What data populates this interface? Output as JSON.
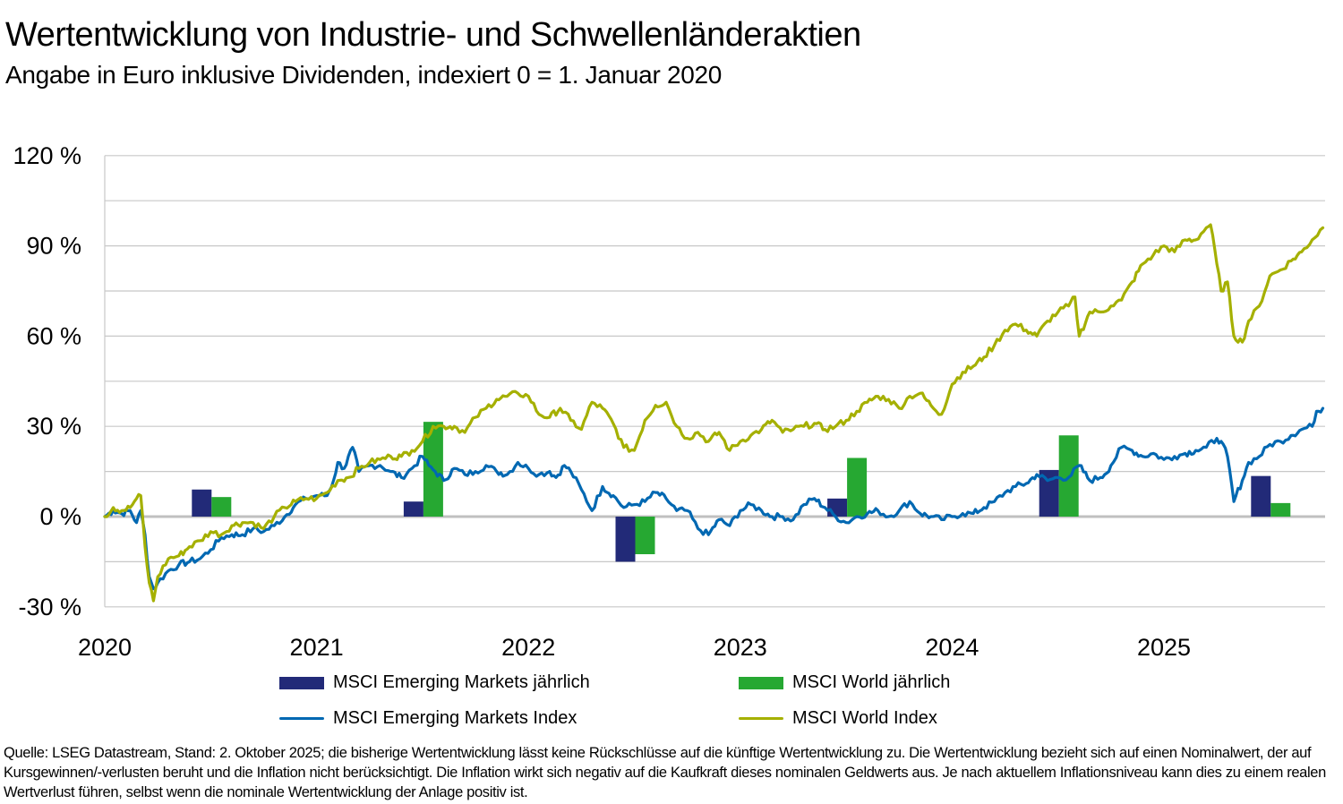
{
  "header": {
    "title": "Wertentwicklung von Industrie- und Schwellenländeraktien",
    "subtitle": "Angabe in Euro inklusive Dividenden, indexiert 0 = 1. Januar 2020"
  },
  "colors": {
    "em_bar": "#222a78",
    "world_bar": "#26a832",
    "em_line": "#0068b2",
    "world_line": "#a5b000",
    "grid": "#c8c8c8",
    "zero_line": "#c0c0c0"
  },
  "chart_data": {
    "type": "line+bar",
    "title": "Wertentwicklung von Industrie- und Schwellenländeraktien",
    "subtitle": "Angabe in Euro inklusive Dividenden, indexiert 0 = 1. Januar 2020",
    "xlabel": "",
    "ylabel": "",
    "ylim": [
      -30,
      120
    ],
    "yticks": [
      -30,
      0,
      30,
      60,
      90,
      120
    ],
    "ytick_labels": [
      "-30 %",
      "0 %",
      "30 %",
      "60 %",
      "90 %",
      "120 %"
    ],
    "xlim": [
      2020.0,
      2025.8
    ],
    "xticks": [
      2020,
      2021,
      2022,
      2023,
      2024,
      2025
    ],
    "xtick_labels": [
      "2020",
      "2021",
      "2022",
      "2023",
      "2024",
      "2025"
    ],
    "grid": true,
    "legend_position": "bottom",
    "bar_series": [
      {
        "name": "MSCI Emerging Markets jährlich",
        "color_key": "em_bar",
        "categories": [
          "2020",
          "2021",
          "2022",
          "2023",
          "2024",
          "2025"
        ],
        "values": [
          9,
          5,
          -15,
          6,
          15.5,
          13.5
        ]
      },
      {
        "name": "MSCI World jährlich",
        "color_key": "world_bar",
        "categories": [
          "2020",
          "2021",
          "2022",
          "2023",
          "2024",
          "2025"
        ],
        "values": [
          6.5,
          31.5,
          -12.5,
          19.5,
          27,
          4.5
        ]
      }
    ],
    "line_series": [
      {
        "name": "MSCI Emerging Markets Index",
        "color_key": "em_line",
        "x": [
          2020.0,
          2020.04,
          2020.08,
          2020.12,
          2020.15,
          2020.17,
          2020.19,
          2020.21,
          2020.23,
          2020.25,
          2020.3,
          2020.35,
          2020.4,
          2020.45,
          2020.5,
          2020.55,
          2020.6,
          2020.65,
          2020.7,
          2020.75,
          2020.8,
          2020.85,
          2020.9,
          2020.95,
          2021.0,
          2021.05,
          2021.08,
          2021.1,
          2021.13,
          2021.17,
          2021.2,
          2021.25,
          2021.3,
          2021.35,
          2021.4,
          2021.45,
          2021.5,
          2021.53,
          2021.56,
          2021.6,
          2021.65,
          2021.7,
          2021.75,
          2021.8,
          2021.85,
          2021.9,
          2021.95,
          2022.0,
          2022.05,
          2022.1,
          2022.13,
          2022.17,
          2022.2,
          2022.25,
          2022.3,
          2022.35,
          2022.4,
          2022.45,
          2022.5,
          2022.55,
          2022.6,
          2022.65,
          2022.7,
          2022.75,
          2022.8,
          2022.85,
          2022.9,
          2022.95,
          2023.0,
          2023.05,
          2023.1,
          2023.15,
          2023.2,
          2023.25,
          2023.3,
          2023.35,
          2023.4,
          2023.45,
          2023.5,
          2023.55,
          2023.6,
          2023.65,
          2023.7,
          2023.75,
          2023.8,
          2023.85,
          2023.9,
          2023.95,
          2024.0,
          2024.05,
          2024.1,
          2024.15,
          2024.2,
          2024.25,
          2024.3,
          2024.35,
          2024.4,
          2024.45,
          2024.5,
          2024.55,
          2024.6,
          2024.65,
          2024.7,
          2024.72,
          2024.75,
          2024.8,
          2024.85,
          2024.9,
          2024.95,
          2025.0,
          2025.05,
          2025.1,
          2025.15,
          2025.2,
          2025.25,
          2025.27,
          2025.3,
          2025.33,
          2025.37,
          2025.4,
          2025.45,
          2025.5,
          2025.55,
          2025.6,
          2025.65,
          2025.7,
          2025.72,
          2025.75
        ],
        "y": [
          0,
          2,
          1,
          2,
          -2,
          2,
          -6,
          -20,
          -24,
          -22,
          -18,
          -16,
          -15,
          -14,
          -11,
          -7,
          -6,
          -6,
          -4,
          -5,
          -3,
          0,
          4,
          6,
          7,
          7,
          12,
          18,
          16,
          23,
          15,
          17,
          17,
          15,
          13,
          16,
          20,
          17,
          15,
          12,
          16,
          14,
          15,
          17,
          15,
          14,
          18,
          16,
          14,
          15,
          13,
          17,
          15,
          9,
          2,
          10,
          7,
          3,
          4,
          5,
          8,
          6,
          2,
          2,
          -4,
          -6,
          -1,
          -3,
          2,
          4,
          2,
          0,
          0,
          -1,
          4,
          6,
          3,
          0,
          -2,
          0,
          1,
          2,
          0,
          2,
          5,
          1,
          0,
          -1,
          0,
          1,
          1,
          3,
          5,
          8,
          10,
          11,
          14,
          12,
          13,
          13,
          17,
          12,
          13,
          14,
          17,
          23,
          22,
          20,
          21,
          19,
          20,
          21,
          22,
          23,
          26,
          25,
          20,
          5,
          12,
          18,
          20,
          24,
          25,
          27,
          29,
          30,
          35,
          36
        ]
      },
      {
        "name": "MSCI World Index",
        "color_key": "world_line",
        "x": [
          2020.0,
          2020.04,
          2020.08,
          2020.12,
          2020.15,
          2020.17,
          2020.19,
          2020.21,
          2020.23,
          2020.25,
          2020.3,
          2020.35,
          2020.4,
          2020.45,
          2020.5,
          2020.55,
          2020.6,
          2020.65,
          2020.7,
          2020.75,
          2020.8,
          2020.85,
          2020.9,
          2020.95,
          2021.0,
          2021.05,
          2021.1,
          2021.15,
          2021.2,
          2021.25,
          2021.3,
          2021.35,
          2021.4,
          2021.45,
          2021.5,
          2021.55,
          2021.6,
          2021.65,
          2021.7,
          2021.75,
          2021.8,
          2021.85,
          2021.9,
          2021.95,
          2022.0,
          2022.05,
          2022.1,
          2022.15,
          2022.2,
          2022.25,
          2022.3,
          2022.35,
          2022.4,
          2022.45,
          2022.5,
          2022.55,
          2022.6,
          2022.65,
          2022.7,
          2022.75,
          2022.8,
          2022.85,
          2022.9,
          2022.95,
          2023.0,
          2023.05,
          2023.1,
          2023.15,
          2023.2,
          2023.25,
          2023.3,
          2023.35,
          2023.4,
          2023.45,
          2023.5,
          2023.55,
          2023.6,
          2023.65,
          2023.7,
          2023.75,
          2023.8,
          2023.85,
          2023.9,
          2023.95,
          2024.0,
          2024.05,
          2024.1,
          2024.15,
          2024.2,
          2024.25,
          2024.3,
          2024.35,
          2024.4,
          2024.45,
          2024.5,
          2024.55,
          2024.58,
          2024.6,
          2024.65,
          2024.7,
          2024.75,
          2024.8,
          2024.85,
          2024.9,
          2024.95,
          2025.0,
          2025.05,
          2025.1,
          2025.15,
          2025.2,
          2025.22,
          2025.25,
          2025.27,
          2025.3,
          2025.33,
          2025.37,
          2025.4,
          2025.45,
          2025.5,
          2025.55,
          2025.6,
          2025.65,
          2025.7,
          2025.75
        ],
        "y": [
          0,
          3,
          2,
          3,
          6,
          7,
          -10,
          -22,
          -28,
          -20,
          -14,
          -13,
          -10,
          -8,
          -5,
          -6,
          -3,
          -2,
          -2,
          -4,
          0,
          3,
          5,
          6,
          6,
          8,
          12,
          13,
          16,
          18,
          19,
          20,
          20,
          22,
          25,
          30,
          30,
          30,
          28,
          33,
          36,
          39,
          40,
          41,
          40,
          34,
          33,
          36,
          32,
          29,
          38,
          36,
          31,
          23,
          22,
          32,
          37,
          38,
          30,
          26,
          28,
          25,
          28,
          22,
          25,
          27,
          29,
          32,
          28,
          29,
          30,
          31,
          29,
          30,
          32,
          35,
          38,
          40,
          39,
          36,
          40,
          41,
          37,
          34,
          44,
          48,
          50,
          53,
          57,
          62,
          64,
          62,
          60,
          65,
          68,
          70,
          73,
          60,
          68,
          68,
          70,
          72,
          78,
          84,
          87,
          90,
          88,
          92,
          92,
          96,
          97,
          84,
          75,
          78,
          60,
          58,
          65,
          70,
          80,
          82,
          85,
          88,
          92,
          96
        ]
      }
    ]
  },
  "legend": {
    "items": [
      {
        "label": "MSCI Emerging Markets jährlich",
        "type": "bar",
        "color_key": "em_bar"
      },
      {
        "label": "MSCI World jährlich",
        "type": "bar",
        "color_key": "world_bar"
      },
      {
        "label": "MSCI Emerging Markets Index",
        "type": "line",
        "color_key": "em_line"
      },
      {
        "label": "MSCI World Index",
        "type": "line",
        "color_key": "world_line"
      }
    ]
  },
  "footnote": "Quelle: LSEG Datastream, Stand: 2. Oktober 2025; die bisherige Wertentwicklung lässt keine Rückschlüsse auf die künftige Wertentwicklung zu. Die Wertentwicklung bezieht sich auf einen Nominalwert, der auf Kursgewinnen/-verlusten beruht und die Inflation nicht berücksichtigt. Die Inflation wirkt sich negativ auf die Kaufkraft dieses nominalen Geldwerts aus. Je nach aktuellem Inflationsniveau kann dies zu einem realen Wertverlust führen, selbst wenn die nominale Wertentwicklung der Anlage positiv ist."
}
